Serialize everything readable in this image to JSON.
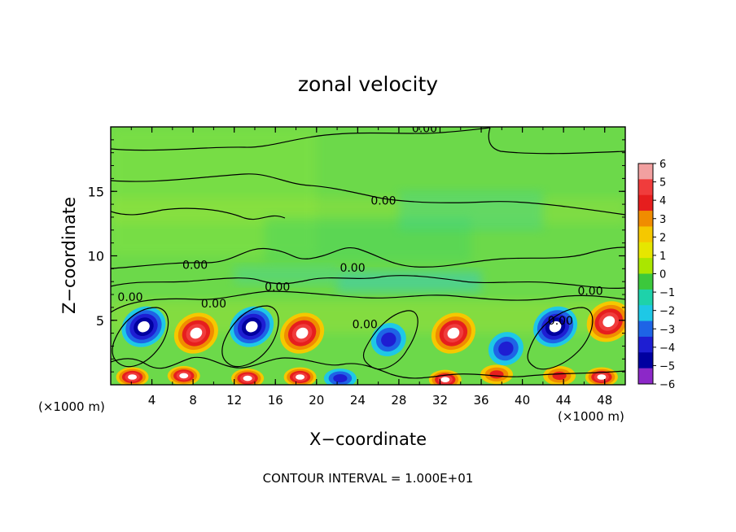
{
  "chart_data": {
    "type": "heatmap",
    "title": "zonal velocity",
    "xlabel": "X−coordinate",
    "ylabel": "Z−coordinate",
    "x_unit_left": "(×1000 m)",
    "x_unit_right": "(×1000 m)",
    "footer": "CONTOUR INTERVAL = 1.000E+01",
    "xlim": [
      0,
      50
    ],
    "ylim": [
      0,
      20
    ],
    "x_ticks": [
      4,
      8,
      12,
      16,
      20,
      24,
      28,
      32,
      36,
      40,
      44,
      48
    ],
    "y_ticks": [
      5,
      10,
      15
    ],
    "colorbar": {
      "levels": [
        "6",
        "5",
        "4",
        "3",
        "2",
        "1",
        "0",
        "−1",
        "−2",
        "−3",
        "−4",
        "−5",
        "−6"
      ],
      "colors": [
        "#f2a0a0",
        "#f03c3c",
        "#e61e1e",
        "#f08c00",
        "#f5c800",
        "#e6e600",
        "#aae600",
        "#3cc83c",
        "#1ed2aa",
        "#1ec8e6",
        "#1e64e6",
        "#1e1ed2",
        "#0000a0",
        "#8c28c8"
      ]
    },
    "contour_labels": [
      {
        "text": "0.00",
        "x": 30.5,
        "y": 19.9
      },
      {
        "text": "0.00",
        "x": 26.5,
        "y": 14.3
      },
      {
        "text": "0.00",
        "x": 8.2,
        "y": 9.3
      },
      {
        "text": "0.00",
        "x": 23.5,
        "y": 9.1
      },
      {
        "text": "0.00",
        "x": 1.9,
        "y": 6.8
      },
      {
        "text": "0.00",
        "x": 10.0,
        "y": 6.3
      },
      {
        "text": "0.00",
        "x": 16.2,
        "y": 7.6
      },
      {
        "text": "0.00",
        "x": 46.6,
        "y": 7.3
      },
      {
        "text": "0.00",
        "x": 24.7,
        "y": 4.7
      },
      {
        "text": "0.00",
        "x": 43.7,
        "y": 5.0
      }
    ],
    "field_features": [
      {
        "label": "6",
        "x": 3.2,
        "y": 4.5
      },
      {
        "label": "-6",
        "x": 3.2,
        "y": 4.5
      },
      {
        "label": "6",
        "x": 8.3,
        "y": 4.0
      },
      {
        "label": "6",
        "x": 13.7,
        "y": 4.5
      },
      {
        "label": "-6",
        "x": 13.7,
        "y": 4.5
      },
      {
        "label": "6",
        "x": 18.6,
        "y": 4.0
      },
      {
        "label": "-3",
        "x": 27.0,
        "y": 3.5
      },
      {
        "label": "6",
        "x": 33.3,
        "y": 4.0
      },
      {
        "label": "-3",
        "x": 38.4,
        "y": 2.8
      },
      {
        "label": "6",
        "x": 43.2,
        "y": 4.5
      },
      {
        "label": "-6",
        "x": 43.2,
        "y": 4.5
      },
      {
        "label": "6",
        "x": 48.4,
        "y": 4.9
      },
      {
        "label": "6",
        "x": 2.1,
        "y": 0.6
      },
      {
        "label": "6",
        "x": 7.1,
        "y": 0.7
      },
      {
        "label": "6",
        "x": 13.3,
        "y": 0.5
      },
      {
        "label": "6",
        "x": 18.4,
        "y": 0.6
      },
      {
        "label": "-3",
        "x": 22.3,
        "y": 0.5
      },
      {
        "label": "6",
        "x": 32.5,
        "y": 0.4
      },
      {
        "label": "3",
        "x": 37.5,
        "y": 0.8
      },
      {
        "label": "3",
        "x": 43.6,
        "y": 0.7
      },
      {
        "label": "6",
        "x": 47.7,
        "y": 0.6
      }
    ]
  }
}
